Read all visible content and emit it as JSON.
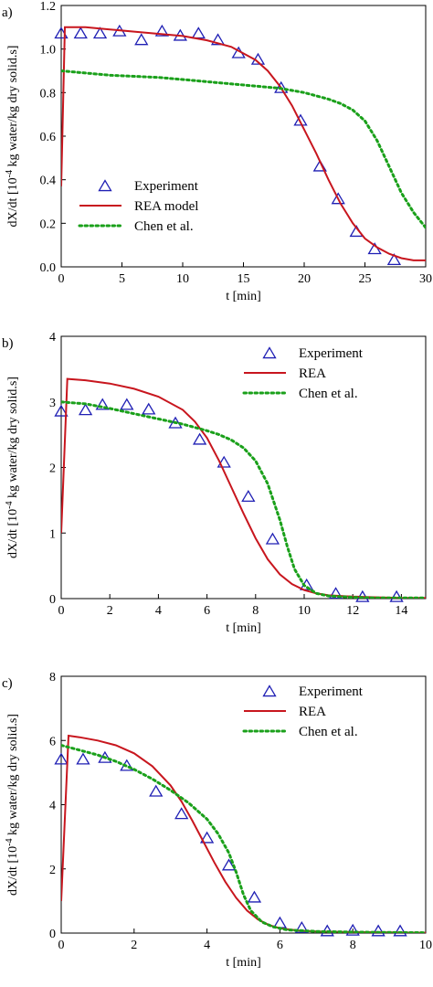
{
  "chart_data": [
    {
      "type": "line",
      "panel_label": "a)",
      "xlabel": "t [min]",
      "ylabel_parts": [
        "dX/dt [10",
        "-4",
        " kg water/kg dry solid.s]"
      ],
      "xlim": [
        0,
        30
      ],
      "ylim": [
        0,
        1.2
      ],
      "xticks": [
        0,
        5,
        10,
        15,
        20,
        25,
        30
      ],
      "xtick_labels": [
        "0",
        "5",
        "10",
        "15",
        "20",
        "25",
        "30"
      ],
      "yticks": [
        0,
        0.2,
        0.4,
        0.6,
        0.8,
        1.0,
        1.2
      ],
      "ytick_labels": [
        "0.0",
        "0.2",
        "0.4",
        "0.6",
        "0.8",
        "1.0",
        "1.2"
      ],
      "grid": false,
      "legend_position": "lower-left",
      "series": [
        {
          "name": "Experiment",
          "kind": "marker",
          "color": "#1f1fb4",
          "x": [
            0,
            1.6,
            3.2,
            4.8,
            6.6,
            8.3,
            9.8,
            11.3,
            12.9,
            14.6,
            16.2,
            18.1,
            19.7,
            21.3,
            22.8,
            24.3,
            25.8,
            27.4
          ],
          "y": [
            1.07,
            1.07,
            1.07,
            1.08,
            1.04,
            1.08,
            1.06,
            1.07,
            1.04,
            0.98,
            0.95,
            0.82,
            0.67,
            0.46,
            0.31,
            0.16,
            0.08,
            0.03
          ]
        },
        {
          "name": "REA model",
          "kind": "line",
          "color": "#c8161e",
          "x": [
            0,
            0.3,
            2,
            4,
            6,
            8,
            10,
            12,
            14,
            16,
            17,
            18,
            19,
            20,
            21,
            22,
            23,
            24,
            25,
            26,
            27,
            28,
            29,
            30
          ],
          "y": [
            0.37,
            1.1,
            1.1,
            1.09,
            1.08,
            1.07,
            1.06,
            1.04,
            1.01,
            0.95,
            0.9,
            0.83,
            0.74,
            0.63,
            0.52,
            0.4,
            0.29,
            0.2,
            0.13,
            0.09,
            0.06,
            0.04,
            0.03,
            0.03
          ]
        },
        {
          "name": "Chen et al.",
          "kind": "dotted",
          "color": "#1aa01a",
          "x": [
            0,
            2,
            4,
            6,
            8,
            10,
            12,
            14,
            16,
            18,
            20,
            22,
            23,
            24,
            25,
            26,
            27,
            28,
            29,
            30
          ],
          "y": [
            0.9,
            0.89,
            0.88,
            0.875,
            0.87,
            0.86,
            0.85,
            0.84,
            0.83,
            0.82,
            0.8,
            0.77,
            0.75,
            0.72,
            0.67,
            0.58,
            0.46,
            0.34,
            0.25,
            0.18
          ]
        }
      ]
    },
    {
      "type": "line",
      "panel_label": "b)",
      "xlabel": "t [min]",
      "ylabel_parts": [
        "dX/dt [10",
        "-4",
        " kg water/kg dry solid.s]"
      ],
      "xlim": [
        0,
        15
      ],
      "ylim": [
        0,
        4
      ],
      "xticks": [
        0,
        2,
        4,
        6,
        8,
        10,
        12,
        14
      ],
      "xtick_labels": [
        "0",
        "2",
        "4",
        "6",
        "8",
        "10",
        "12",
        "14"
      ],
      "yticks": [
        0,
        1,
        2,
        3,
        4
      ],
      "ytick_labels": [
        "0",
        "1",
        "2",
        "3",
        "4"
      ],
      "grid": false,
      "legend_position": "top-right",
      "series": [
        {
          "name": "Experiment",
          "kind": "marker",
          "color": "#1f1fb4",
          "x": [
            0,
            1,
            1.7,
            2.7,
            3.6,
            4.7,
            5.7,
            6.7,
            7.7,
            8.7,
            10.1,
            11.3,
            12.4,
            13.8
          ],
          "y": [
            2.85,
            2.87,
            2.95,
            2.95,
            2.88,
            2.67,
            2.42,
            2.07,
            1.55,
            0.9,
            0.2,
            0.07,
            0.02,
            0.02
          ]
        },
        {
          "name": "REA",
          "kind": "line",
          "color": "#c8161e",
          "x": [
            0,
            0.25,
            1,
            2,
            3,
            4,
            5,
            5.5,
            6,
            6.5,
            7,
            7.5,
            8,
            8.5,
            9,
            9.5,
            10,
            10.5,
            11,
            12,
            13,
            14,
            15
          ],
          "y": [
            1.0,
            3.35,
            3.33,
            3.28,
            3.2,
            3.08,
            2.88,
            2.7,
            2.45,
            2.1,
            1.7,
            1.3,
            0.92,
            0.6,
            0.37,
            0.22,
            0.13,
            0.08,
            0.05,
            0.03,
            0.02,
            0.01,
            0.01
          ]
        },
        {
          "name": "Chen et al.",
          "kind": "dotted",
          "color": "#1aa01a",
          "x": [
            0,
            1,
            2,
            3,
            4,
            5,
            6,
            6.5,
            7,
            7.5,
            8,
            8.5,
            9,
            9.3,
            9.6,
            10,
            10.5,
            11,
            12,
            13,
            14,
            15
          ],
          "y": [
            3.0,
            2.97,
            2.9,
            2.82,
            2.74,
            2.66,
            2.56,
            2.5,
            2.42,
            2.3,
            2.1,
            1.75,
            1.2,
            0.8,
            0.45,
            0.2,
            0.08,
            0.04,
            0.02,
            0.01,
            0.01,
            0.01
          ]
        }
      ]
    },
    {
      "type": "line",
      "panel_label": "c)",
      "xlabel": "t [min]",
      "ylabel_parts": [
        "dX/dt [10",
        "-4",
        " kg water/kg dry solid.s]"
      ],
      "xlim": [
        0,
        10
      ],
      "ylim": [
        0,
        8
      ],
      "xticks": [
        0,
        2,
        4,
        6,
        8,
        10
      ],
      "xtick_labels": [
        "0",
        "2",
        "4",
        "6",
        "8",
        "10"
      ],
      "yticks": [
        0,
        2,
        4,
        6,
        8
      ],
      "ytick_labels": [
        "0",
        "2",
        "4",
        "6",
        "8"
      ],
      "grid": false,
      "legend_position": "top-right",
      "series": [
        {
          "name": "Experiment",
          "kind": "marker",
          "color": "#1f1fb4",
          "x": [
            0,
            0.6,
            1.2,
            1.8,
            2.6,
            3.3,
            4.0,
            4.6,
            5.3,
            6.0,
            6.6,
            7.3,
            8.0,
            8.7,
            9.3
          ],
          "y": [
            5.4,
            5.4,
            5.45,
            5.2,
            4.4,
            3.7,
            2.95,
            2.1,
            1.1,
            0.3,
            0.15,
            0.05,
            0.07,
            0.05,
            0.05
          ]
        },
        {
          "name": "REA",
          "kind": "line",
          "color": "#c8161e",
          "x": [
            0,
            0.2,
            0.5,
            1,
            1.5,
            2,
            2.5,
            3,
            3.3,
            3.6,
            3.9,
            4.2,
            4.5,
            4.8,
            5.1,
            5.4,
            5.7,
            6,
            6.5,
            7,
            8,
            9,
            10
          ],
          "y": [
            1.0,
            6.15,
            6.1,
            6.0,
            5.85,
            5.6,
            5.2,
            4.6,
            4.1,
            3.5,
            2.85,
            2.2,
            1.6,
            1.1,
            0.7,
            0.42,
            0.25,
            0.15,
            0.08,
            0.05,
            0.03,
            0.02,
            0.01
          ]
        },
        {
          "name": "Chen et al.",
          "kind": "dotted",
          "color": "#1aa01a",
          "x": [
            0,
            0.5,
            1,
            1.5,
            2,
            2.5,
            3,
            3.5,
            4,
            4.3,
            4.6,
            4.8,
            5.0,
            5.2,
            5.5,
            5.8,
            6.2,
            7,
            8,
            9,
            10
          ],
          "y": [
            5.85,
            5.7,
            5.55,
            5.35,
            5.1,
            4.8,
            4.45,
            4.05,
            3.55,
            3.1,
            2.5,
            1.9,
            1.2,
            0.7,
            0.35,
            0.2,
            0.1,
            0.05,
            0.03,
            0.02,
            0.01
          ]
        }
      ]
    }
  ]
}
